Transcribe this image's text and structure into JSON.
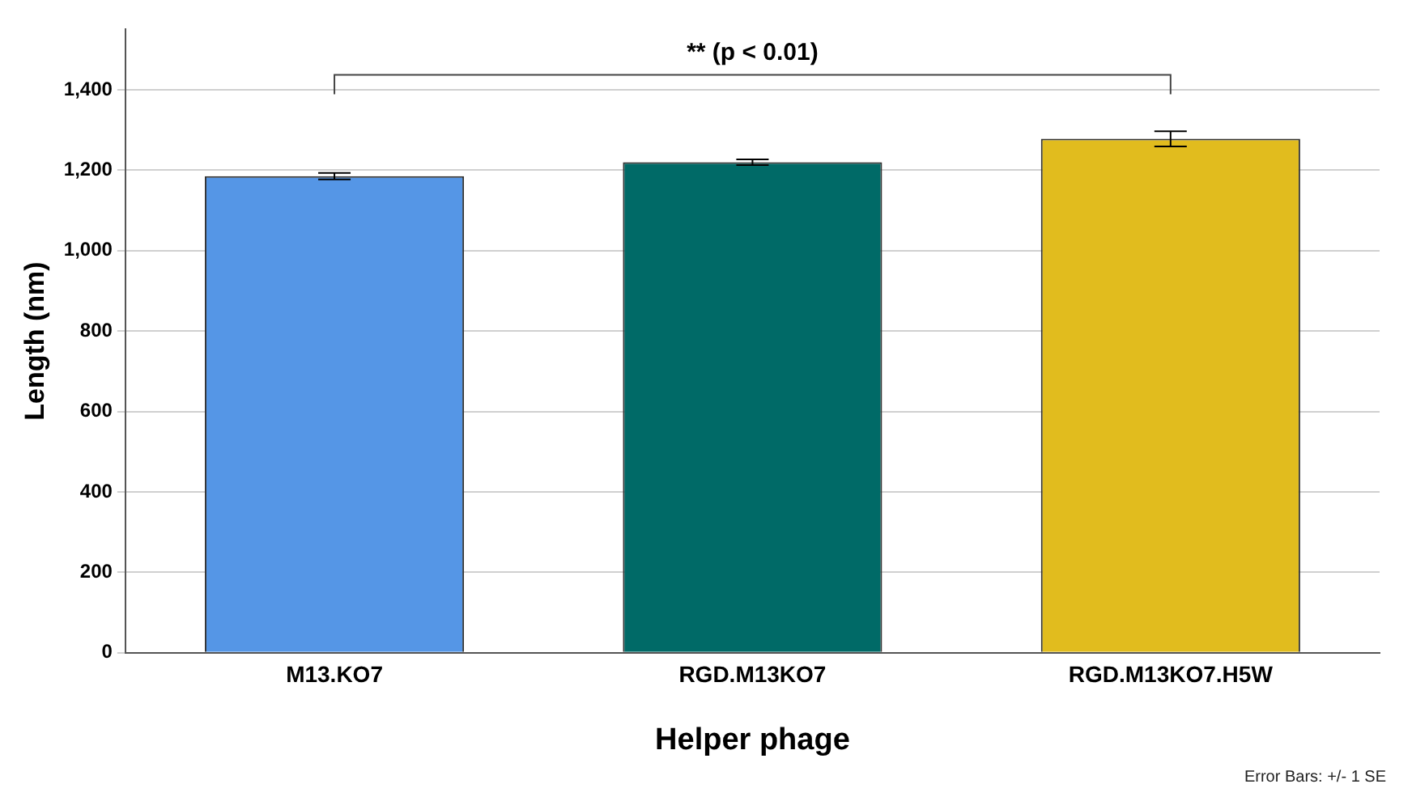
{
  "chart_data": {
    "type": "bar",
    "xlabel": "Helper phage",
    "ylabel": "Length (nm)",
    "categories": [
      "M13.KO7",
      "RGD.M13KO7",
      "RGD.M13KO7.H5W"
    ],
    "values": [
      1185,
      1220,
      1278
    ],
    "colors": [
      "#5596e6",
      "#006a67",
      "#e1bc1e"
    ],
    "errors": [
      8,
      7,
      19
    ],
    "ylim": [
      0,
      1550
    ],
    "yticks": [
      0,
      200,
      400,
      600,
      800,
      {
        "value": 1000,
        "label": "1,000"
      },
      {
        "value": 1200,
        "label": "1,200"
      },
      {
        "value": 1400,
        "label": "1,400"
      }
    ],
    "grid": "y",
    "annotations": [
      "** (p < 0.01)",
      "Error Bars: +/- 1 SE"
    ]
  }
}
